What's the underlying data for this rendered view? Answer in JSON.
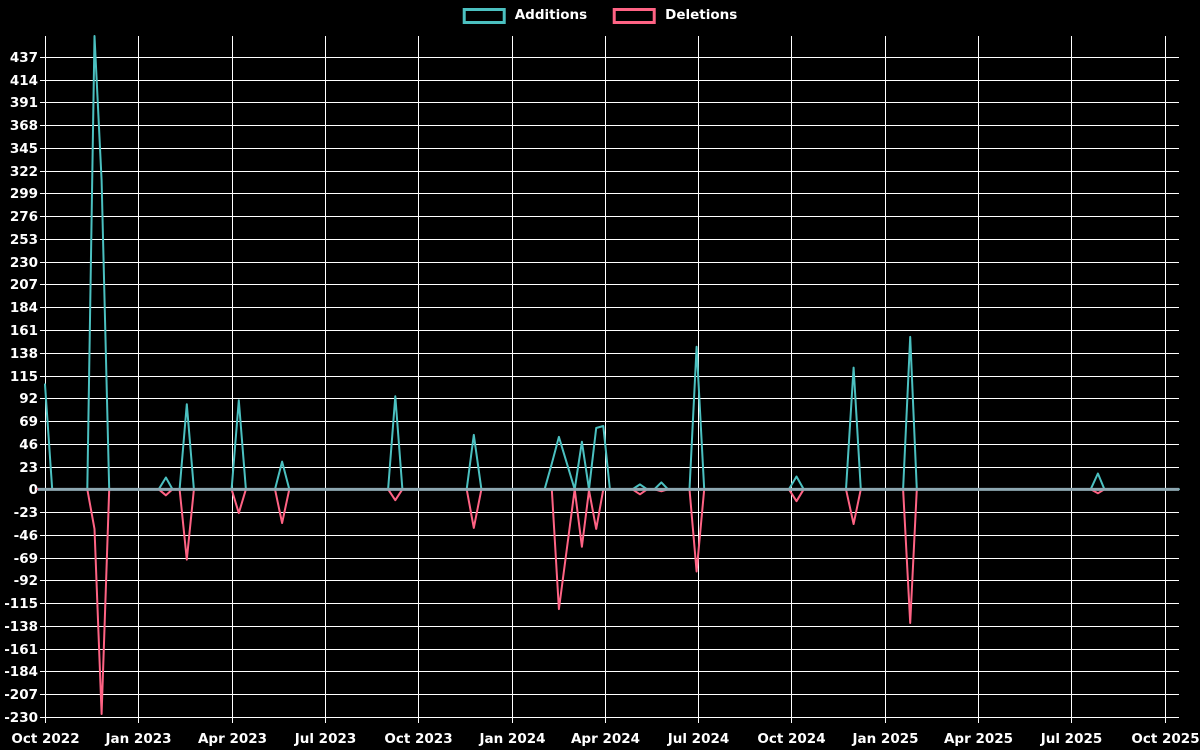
{
  "legend": {
    "items": [
      {
        "label": "Additions",
        "color": "#4bc0c0"
      },
      {
        "label": "Deletions",
        "color": "#ff6384"
      }
    ]
  },
  "chart_data": {
    "type": "line",
    "title": "",
    "baseline": 0,
    "grid": true,
    "legend_position": "top-center",
    "colors": {
      "background": "#000000",
      "grid": "#ffffff",
      "tick_text": "#ffffff",
      "zero_line": "#8da7b1",
      "additions": "#4bc0c0",
      "deletions": "#ff6384"
    },
    "x_axis": {
      "tick_labels": [
        "Oct 2022",
        "Jan 2023",
        "Apr 2023",
        "Jul 2023",
        "Oct 2023",
        "Jan 2024",
        "Apr 2024",
        "Jul 2024",
        "Oct 2024",
        "Jan 2025",
        "Apr 2025",
        "Jul 2025",
        "Oct 2025"
      ],
      "months_per_tick": 3,
      "range_months": [
        0,
        36.46
      ]
    },
    "y_axis": {
      "min": -230,
      "max": 458,
      "tick_step": 23,
      "tick_labels": [
        437,
        414,
        391,
        368,
        345,
        322,
        299,
        276,
        253,
        230,
        207,
        184,
        161,
        138,
        115,
        92,
        69,
        46,
        23,
        0,
        -23,
        -46,
        -69,
        -92,
        -115,
        -138,
        -161,
        -184,
        -207,
        -230
      ]
    },
    "series": [
      {
        "name": "Additions",
        "color": "#4bc0c0",
        "value_index": 1
      },
      {
        "name": "Deletions",
        "color": "#ff6384",
        "value_index": 2
      }
    ],
    "points_format": [
      "week_date",
      "additions",
      "deletions_plotted"
    ],
    "points": [
      [
        "2022-09-24",
        null,
        0
      ],
      [
        "2022-10-01",
        106,
        0
      ],
      [
        "2022-10-08",
        0,
        0
      ],
      [
        "2022-11-12",
        0,
        0
      ],
      [
        "2022-11-19",
        458,
        -40
      ],
      [
        "2022-11-26",
        312,
        -227
      ],
      [
        "2022-12-03",
        0,
        0
      ],
      [
        "2023-01-21",
        0,
        0
      ],
      [
        "2023-01-28",
        12,
        -6
      ],
      [
        "2023-02-04",
        0,
        0
      ],
      [
        "2023-02-11",
        0,
        0
      ],
      [
        "2023-02-18",
        86,
        -71
      ],
      [
        "2023-02-25",
        0,
        0
      ],
      [
        "2023-04-01",
        0,
        0
      ],
      [
        "2023-04-08",
        90,
        -24
      ],
      [
        "2023-04-15",
        0,
        0
      ],
      [
        "2023-05-13",
        0,
        0
      ],
      [
        "2023-05-20",
        28,
        -34
      ],
      [
        "2023-05-27",
        0,
        0
      ],
      [
        "2023-09-02",
        0,
        0
      ],
      [
        "2023-09-09",
        94,
        -11
      ],
      [
        "2023-09-16",
        0,
        0
      ],
      [
        "2023-11-18",
        0,
        0
      ],
      [
        "2023-11-25",
        55,
        -39
      ],
      [
        "2023-12-02",
        0,
        0
      ],
      [
        "2024-02-03",
        0,
        0
      ],
      [
        "2024-02-10",
        26,
        0
      ],
      [
        "2024-02-17",
        53,
        -121
      ],
      [
        "2024-03-02",
        0,
        0
      ],
      [
        "2024-03-09",
        48,
        -58
      ],
      [
        "2024-03-16",
        0,
        -1
      ],
      [
        "2024-03-23",
        62,
        -40
      ],
      [
        "2024-03-30",
        64,
        0
      ],
      [
        "2024-04-06",
        0,
        0
      ],
      [
        "2024-04-28",
        0,
        0
      ],
      [
        "2024-05-05",
        5,
        -5
      ],
      [
        "2024-05-12",
        0,
        0
      ],
      [
        "2024-05-19",
        0,
        0
      ],
      [
        "2024-05-26",
        7,
        -2
      ],
      [
        "2024-06-02",
        0,
        0
      ],
      [
        "2024-06-23",
        0,
        0
      ],
      [
        "2024-06-30",
        144,
        -83
      ],
      [
        "2024-07-07",
        0,
        0
      ],
      [
        "2024-09-29",
        0,
        0
      ],
      [
        "2024-10-06",
        13,
        -12
      ],
      [
        "2024-10-13",
        0,
        0
      ],
      [
        "2024-11-24",
        0,
        0
      ],
      [
        "2024-12-01",
        123,
        -35
      ],
      [
        "2024-12-08",
        0,
        0
      ],
      [
        "2025-01-19",
        0,
        0
      ],
      [
        "2025-01-26",
        154,
        -135
      ],
      [
        "2025-02-02",
        0,
        0
      ],
      [
        "2025-07-20",
        0,
        0
      ],
      [
        "2025-07-27",
        16,
        -4
      ],
      [
        "2025-08-03",
        0,
        0
      ],
      [
        "2025-10-15",
        0,
        0
      ]
    ]
  }
}
